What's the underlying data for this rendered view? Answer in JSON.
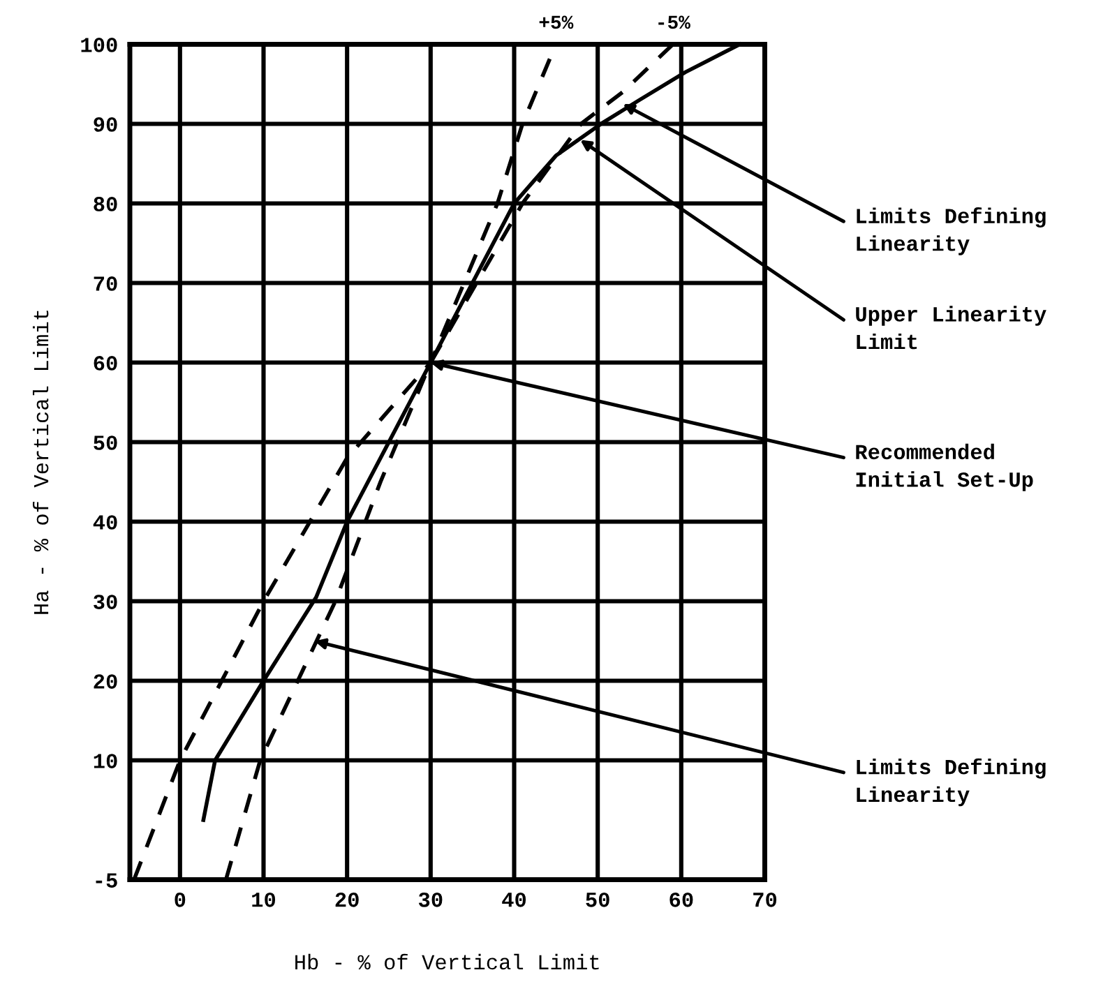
{
  "chart_data": {
    "type": "line",
    "xlabel": "Hb - % of Vertical Limit",
    "ylabel": "Ha - % of Vertical Limit",
    "xlim": [
      -6,
      70
    ],
    "ylim": [
      -5,
      100
    ],
    "xticks": [
      0,
      10,
      20,
      30,
      40,
      50,
      60,
      70
    ],
    "yticks": [
      -5,
      10,
      20,
      30,
      40,
      50,
      60,
      70,
      80,
      90,
      100
    ],
    "grid": true,
    "series": [
      {
        "name": "+5%",
        "color": "#000000",
        "line_style": "dashed",
        "x": [
          -5.5,
          0,
          10,
          20,
          30,
          38,
          41,
          45
        ],
        "values": [
          -5,
          10,
          30,
          48,
          60,
          80,
          90,
          100
        ]
      },
      {
        "name": "-5%",
        "color": "#000000",
        "line_style": "dashed",
        "x": [
          5.5,
          9.6,
          18.6,
          24,
          30,
          41,
          48,
          53,
          59
        ],
        "values": [
          -5,
          10,
          30,
          45,
          60,
          80,
          90,
          94,
          100
        ]
      },
      {
        "color": "#000000",
        "line_style": "solid",
        "x": [
          2.8,
          4.2,
          10,
          16.3,
          20,
          25,
          30,
          35,
          40,
          45,
          50.4,
          55,
          60.5,
          67
        ],
        "values": [
          2.5,
          10,
          20,
          30.5,
          40,
          50,
          60,
          70,
          80,
          86,
          90,
          93,
          96.5,
          100
        ]
      }
    ],
    "annotations": [
      {
        "text": "Limits Defining\nLinearity",
        "x": 53,
        "y": 92.5
      },
      {
        "text": "Upper Linearity\nLimit",
        "x": 47.9,
        "y": 88
      },
      {
        "text": "Recommended\nInitial Set-Up",
        "x": 30,
        "y": 60
      },
      {
        "text": "Limits Defining\nLinearity",
        "x": 16.1,
        "y": 25
      }
    ]
  }
}
